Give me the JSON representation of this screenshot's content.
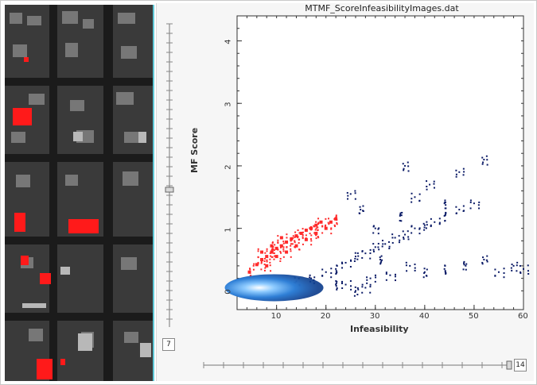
{
  "window": {
    "plot_title": "MTMF_ScoreInfeasibilityImages.dat"
  },
  "sliders": {
    "vertical_value": "7",
    "horizontal_value": "14"
  },
  "chart_data": {
    "type": "scatter",
    "title": "MTMF_ScoreInfeasibilityImages.dat",
    "xlabel": "Infeasibility",
    "ylabel": "MF Score",
    "xlim": [
      2,
      60
    ],
    "ylim": [
      -0.3,
      4.4
    ],
    "x_ticks": [
      "10",
      "20",
      "30",
      "40",
      "50",
      "60"
    ],
    "y_ticks": [
      "0",
      "1",
      "2",
      "3",
      "4"
    ],
    "series": [
      {
        "color": "#ff2a2a",
        "points": [
          [
            4.5,
            0.3
          ],
          [
            6,
            0.42
          ],
          [
            7,
            0.5
          ],
          [
            8,
            0.55
          ],
          [
            9,
            0.62
          ],
          [
            10,
            0.68
          ],
          [
            11,
            0.72
          ],
          [
            12,
            0.78
          ],
          [
            13,
            0.83
          ],
          [
            14,
            0.88
          ],
          [
            15,
            0.92
          ],
          [
            16,
            0.97
          ],
          [
            17,
            1.0
          ],
          [
            18,
            1.05
          ],
          [
            19,
            1.1
          ],
          [
            8,
            0.4
          ],
          [
            10,
            0.55
          ],
          [
            12,
            0.62
          ],
          [
            14,
            0.72
          ],
          [
            16,
            0.82
          ],
          [
            18,
            0.92
          ],
          [
            20,
            1.0
          ],
          [
            21,
            1.1
          ],
          [
            22,
            1.15
          ],
          [
            7,
            0.62
          ],
          [
            9,
            0.72
          ],
          [
            11,
            0.85
          ]
        ]
      },
      {
        "color": "#0a1a66",
        "points": [
          [
            5,
            0.02
          ],
          [
            8,
            0.05
          ],
          [
            11,
            0.1
          ],
          [
            14,
            0.15
          ],
          [
            17,
            0.2
          ],
          [
            20,
            0.3
          ],
          [
            22,
            0.35
          ],
          [
            24,
            0.45
          ],
          [
            26,
            0.55
          ],
          [
            28,
            0.6
          ],
          [
            30,
            0.7
          ],
          [
            32,
            0.75
          ],
          [
            34,
            0.85
          ],
          [
            36,
            0.9
          ],
          [
            38,
            1.0
          ],
          [
            40,
            1.05
          ],
          [
            42,
            1.1
          ],
          [
            44,
            1.2
          ],
          [
            47,
            1.3
          ],
          [
            50,
            1.4
          ],
          [
            24,
            0.1
          ],
          [
            28,
            0.05
          ],
          [
            33,
            0.25
          ],
          [
            37,
            0.4
          ],
          [
            40,
            0.3
          ],
          [
            44,
            0.35
          ],
          [
            48,
            0.42
          ],
          [
            52,
            0.5
          ],
          [
            55,
            0.3
          ],
          [
            58,
            0.4
          ],
          [
            60,
            0.35
          ],
          [
            35,
            1.2
          ],
          [
            38,
            1.5
          ],
          [
            41,
            1.7
          ],
          [
            44,
            1.4
          ],
          [
            47,
            1.9
          ],
          [
            52,
            2.1
          ],
          [
            30,
            1.0
          ],
          [
            36,
            2.0
          ],
          [
            27,
            1.3
          ],
          [
            25,
            1.55
          ],
          [
            31,
            0.5
          ],
          [
            29,
            0.2
          ],
          [
            26,
            0.0
          ],
          [
            22,
            0.1
          ]
        ]
      }
    ],
    "density_core": {
      "center_x": 9.5,
      "center_y": 0.05,
      "colors": [
        "#ffffff",
        "#8ecbff",
        "#2f7fd6",
        "#0a3a8a"
      ]
    }
  }
}
